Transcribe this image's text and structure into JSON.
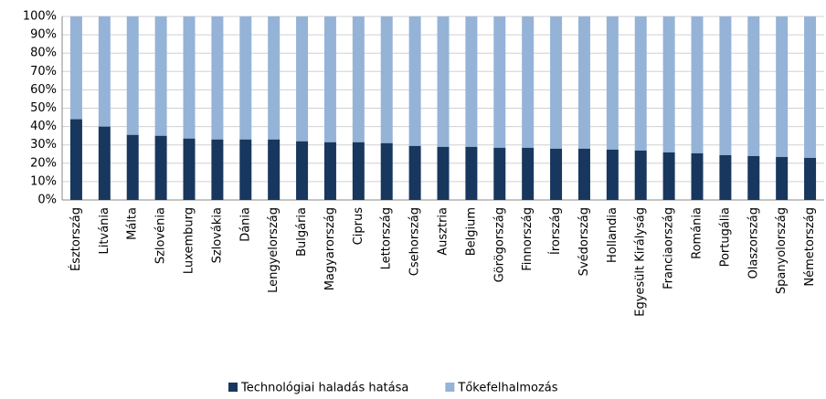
{
  "chart_data": {
    "type": "stacked_bar",
    "categories": [
      "Észtország",
      "Litvánia",
      "Málta",
      "Szlovénia",
      "Luxemburg",
      "Szlovákia",
      "Dánia",
      "Lengyelország",
      "Bulgária",
      "Magyarország",
      "Ciprus",
      "Lettország",
      "Csehország",
      "Ausztria",
      "Belgium",
      "Görögország",
      "Finnország",
      "Írország",
      "Svédország",
      "Hollandia",
      "Egyesült Királyság",
      "Franciaország",
      "Románia",
      "Portugália",
      "Olaszország",
      "Spanyolország",
      "Németország"
    ],
    "series": [
      {
        "name": "Technológiai haladás hatása",
        "color": "#17375e",
        "values": [
          44,
          40,
          35.5,
          35,
          33.5,
          33,
          33,
          33,
          32,
          31.5,
          31.5,
          31,
          29.5,
          29,
          29,
          28.5,
          28.5,
          28,
          28,
          27.5,
          27,
          26,
          25.5,
          24.5,
          24,
          23.5,
          23
        ]
      },
      {
        "name": "Tőkefelhalmozás",
        "color": "#95b3d7",
        "values": [
          56,
          60,
          64.5,
          65,
          66.5,
          67,
          67,
          67,
          68,
          68.5,
          68.5,
          69,
          70.5,
          71,
          71,
          71.5,
          71.5,
          72,
          72,
          72.5,
          73,
          74,
          74.5,
          75.5,
          76,
          76.5,
          77
        ]
      }
    ],
    "ylim": [
      0,
      100
    ],
    "yticks": [
      {
        "value": 0,
        "label": "0%"
      },
      {
        "value": 10,
        "label": "10%"
      },
      {
        "value": 20,
        "label": "20%"
      },
      {
        "value": 30,
        "label": "30%"
      },
      {
        "value": 40,
        "label": "40%"
      },
      {
        "value": 50,
        "label": "50%"
      },
      {
        "value": 60,
        "label": "60%"
      },
      {
        "value": 70,
        "label": "70%"
      },
      {
        "value": 80,
        "label": "80%"
      },
      {
        "value": 90,
        "label": "90%"
      },
      {
        "value": 100,
        "label": "100%"
      }
    ],
    "grid": true,
    "legend": "bottom"
  }
}
